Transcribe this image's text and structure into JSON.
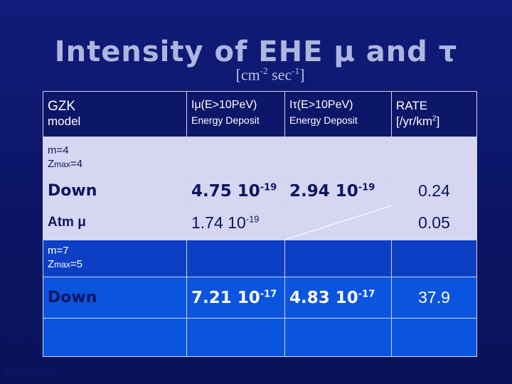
{
  "slide": {
    "title": "Intensity of EHE μ and τ",
    "unit_prefix": "[cm",
    "unit_exp1": "-2",
    "unit_mid": " sec",
    "unit_exp2": "-1",
    "unit_suffix": "]",
    "footer": "TAUP 2003"
  },
  "table": {
    "header": {
      "gzk": "GZK",
      "model": "model",
      "imu": "Iμ(E>10PeV)",
      "imu_sub": "Energy Deposit",
      "itau": "Iτ(E>10PeV)",
      "itau_sub": "Energy Deposit",
      "rate": "RATE",
      "rate_unit": "[/yr/km",
      "rate_exp": "2",
      "rate_close": "]"
    },
    "group1": {
      "label_m": "m=4",
      "label_z_pre": "Z",
      "label_z_sub": "max",
      "label_z_post": "=4",
      "down_label": "Down",
      "down_imu": "4.75 10",
      "down_imu_exp": "-19",
      "down_itau": "2.94 10",
      "down_itau_exp": "-19",
      "down_rate": "0.24",
      "atm_label": "Atm μ",
      "atm_imu": "1.74 10",
      "atm_imu_exp": "-19",
      "atm_rate": "0.05"
    },
    "group2": {
      "label_m": "m=7",
      "label_z_pre": "Z",
      "label_z_sub": "max",
      "label_z_post": "=5",
      "down_label": "Down",
      "down_imu": "7.21 10",
      "down_imu_exp": "-17",
      "down_itau": "4.83 10",
      "down_itau_exp": "-17",
      "down_rate": "37.9"
    }
  },
  "colors": {
    "background": "#0b1463",
    "lavender": "#d6d6f2",
    "bright_blue": "#0b54e0",
    "title": "#aeb6e0"
  }
}
